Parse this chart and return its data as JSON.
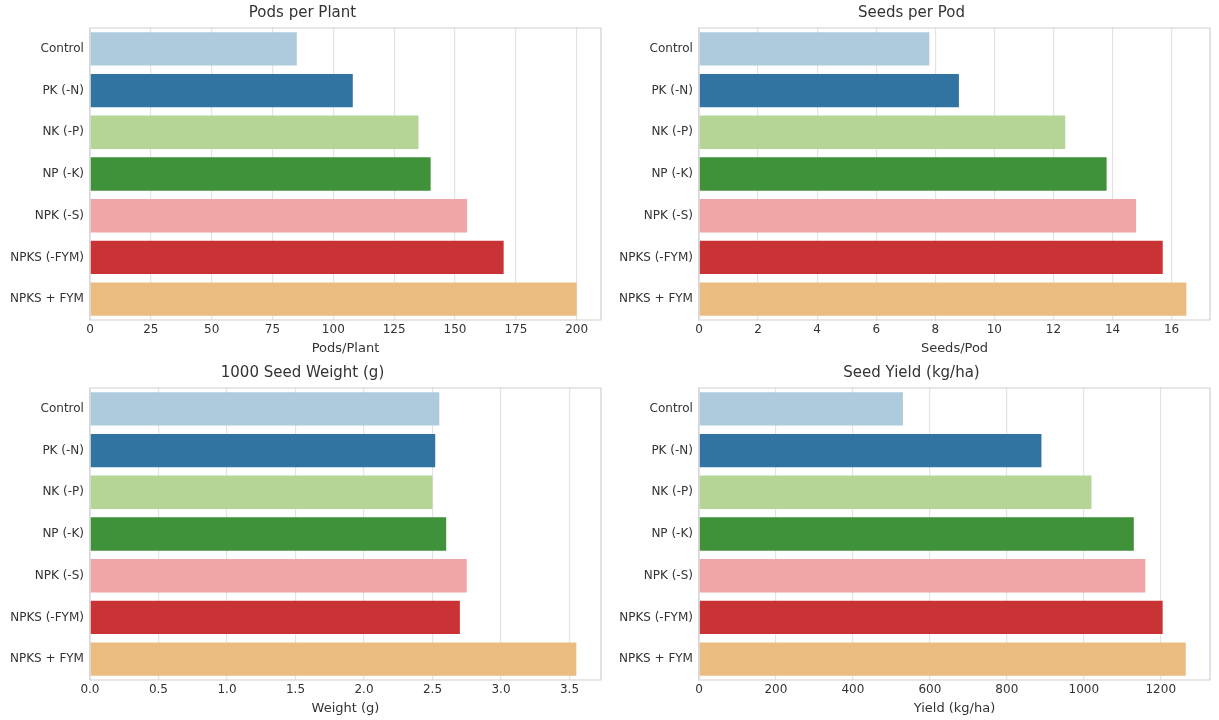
{
  "chart_data": [
    {
      "type": "bar",
      "orientation": "horizontal",
      "title": "Pods per Plant",
      "xlabel": "Pods/Plant",
      "categories": [
        "Control",
        "PK (-N)",
        "NK (-P)",
        "NP (-K)",
        "NPK (-S)",
        "NPKS (-FYM)",
        "NPKS + FYM"
      ],
      "values": [
        85,
        108,
        135,
        140,
        155,
        170,
        200
      ],
      "colors": [
        "#aecbdd",
        "#3274a1",
        "#b4d595",
        "#3f923a",
        "#f0a6a6",
        "#c93335",
        "#ebbc80"
      ],
      "xlim": [
        0,
        210
      ],
      "xticks": [
        0,
        25,
        50,
        75,
        100,
        125,
        150,
        175,
        200
      ],
      "grid": "x"
    },
    {
      "type": "bar",
      "orientation": "horizontal",
      "title": "Seeds per Pod",
      "xlabel": "Seeds/Pod",
      "categories": [
        "Control",
        "PK (-N)",
        "NK (-P)",
        "NP (-K)",
        "NPK (-S)",
        "NPKS (-FYM)",
        "NPKS + FYM"
      ],
      "values": [
        7.8,
        8.8,
        12.4,
        13.8,
        14.8,
        15.7,
        16.5
      ],
      "colors": [
        "#aecbdd",
        "#3274a1",
        "#b4d595",
        "#3f923a",
        "#f0a6a6",
        "#c93335",
        "#ebbc80"
      ],
      "xlim": [
        0,
        17.3
      ],
      "xticks": [
        0,
        2,
        4,
        6,
        8,
        10,
        12,
        14,
        16
      ],
      "grid": "x"
    },
    {
      "type": "bar",
      "orientation": "horizontal",
      "title": "1000 Seed Weight (g)",
      "xlabel": "Weight (g)",
      "categories": [
        "Control",
        "PK (-N)",
        "NK (-P)",
        "NP (-K)",
        "NPK (-S)",
        "NPKS (-FYM)",
        "NPKS + FYM"
      ],
      "values": [
        2.55,
        2.52,
        2.5,
        2.6,
        2.75,
        2.7,
        3.55
      ],
      "colors": [
        "#aecbdd",
        "#3274a1",
        "#b4d595",
        "#3f923a",
        "#f0a6a6",
        "#c93335",
        "#ebbc80"
      ],
      "xlim": [
        0,
        3.73
      ],
      "xticks": [
        {
          "value": 0,
          "label": "0.0"
        },
        {
          "value": 0.5,
          "label": "0.5"
        },
        {
          "value": 1,
          "label": "1.0"
        },
        {
          "value": 1.5,
          "label": "1.5"
        },
        {
          "value": 2,
          "label": "2.0"
        },
        {
          "value": 2.5,
          "label": "2.5"
        },
        {
          "value": 3,
          "label": "3.0"
        },
        {
          "value": 3.5,
          "label": "3.5"
        }
      ],
      "grid": "x"
    },
    {
      "type": "bar",
      "orientation": "horizontal",
      "title": "Seed Yield (kg/ha)",
      "xlabel": "Yield (kg/ha)",
      "categories": [
        "Control",
        "PK (-N)",
        "NK (-P)",
        "NP (-K)",
        "NPK (-S)",
        "NPKS (-FYM)",
        "NPKS + FYM"
      ],
      "values": [
        530,
        890,
        1020,
        1130,
        1160,
        1205,
        1265
      ],
      "colors": [
        "#aecbdd",
        "#3274a1",
        "#b4d595",
        "#3f923a",
        "#f0a6a6",
        "#c93335",
        "#ebbc80"
      ],
      "xlim": [
        0,
        1328
      ],
      "xticks": [
        0,
        200,
        400,
        600,
        800,
        1000,
        1200
      ],
      "grid": "x"
    }
  ]
}
